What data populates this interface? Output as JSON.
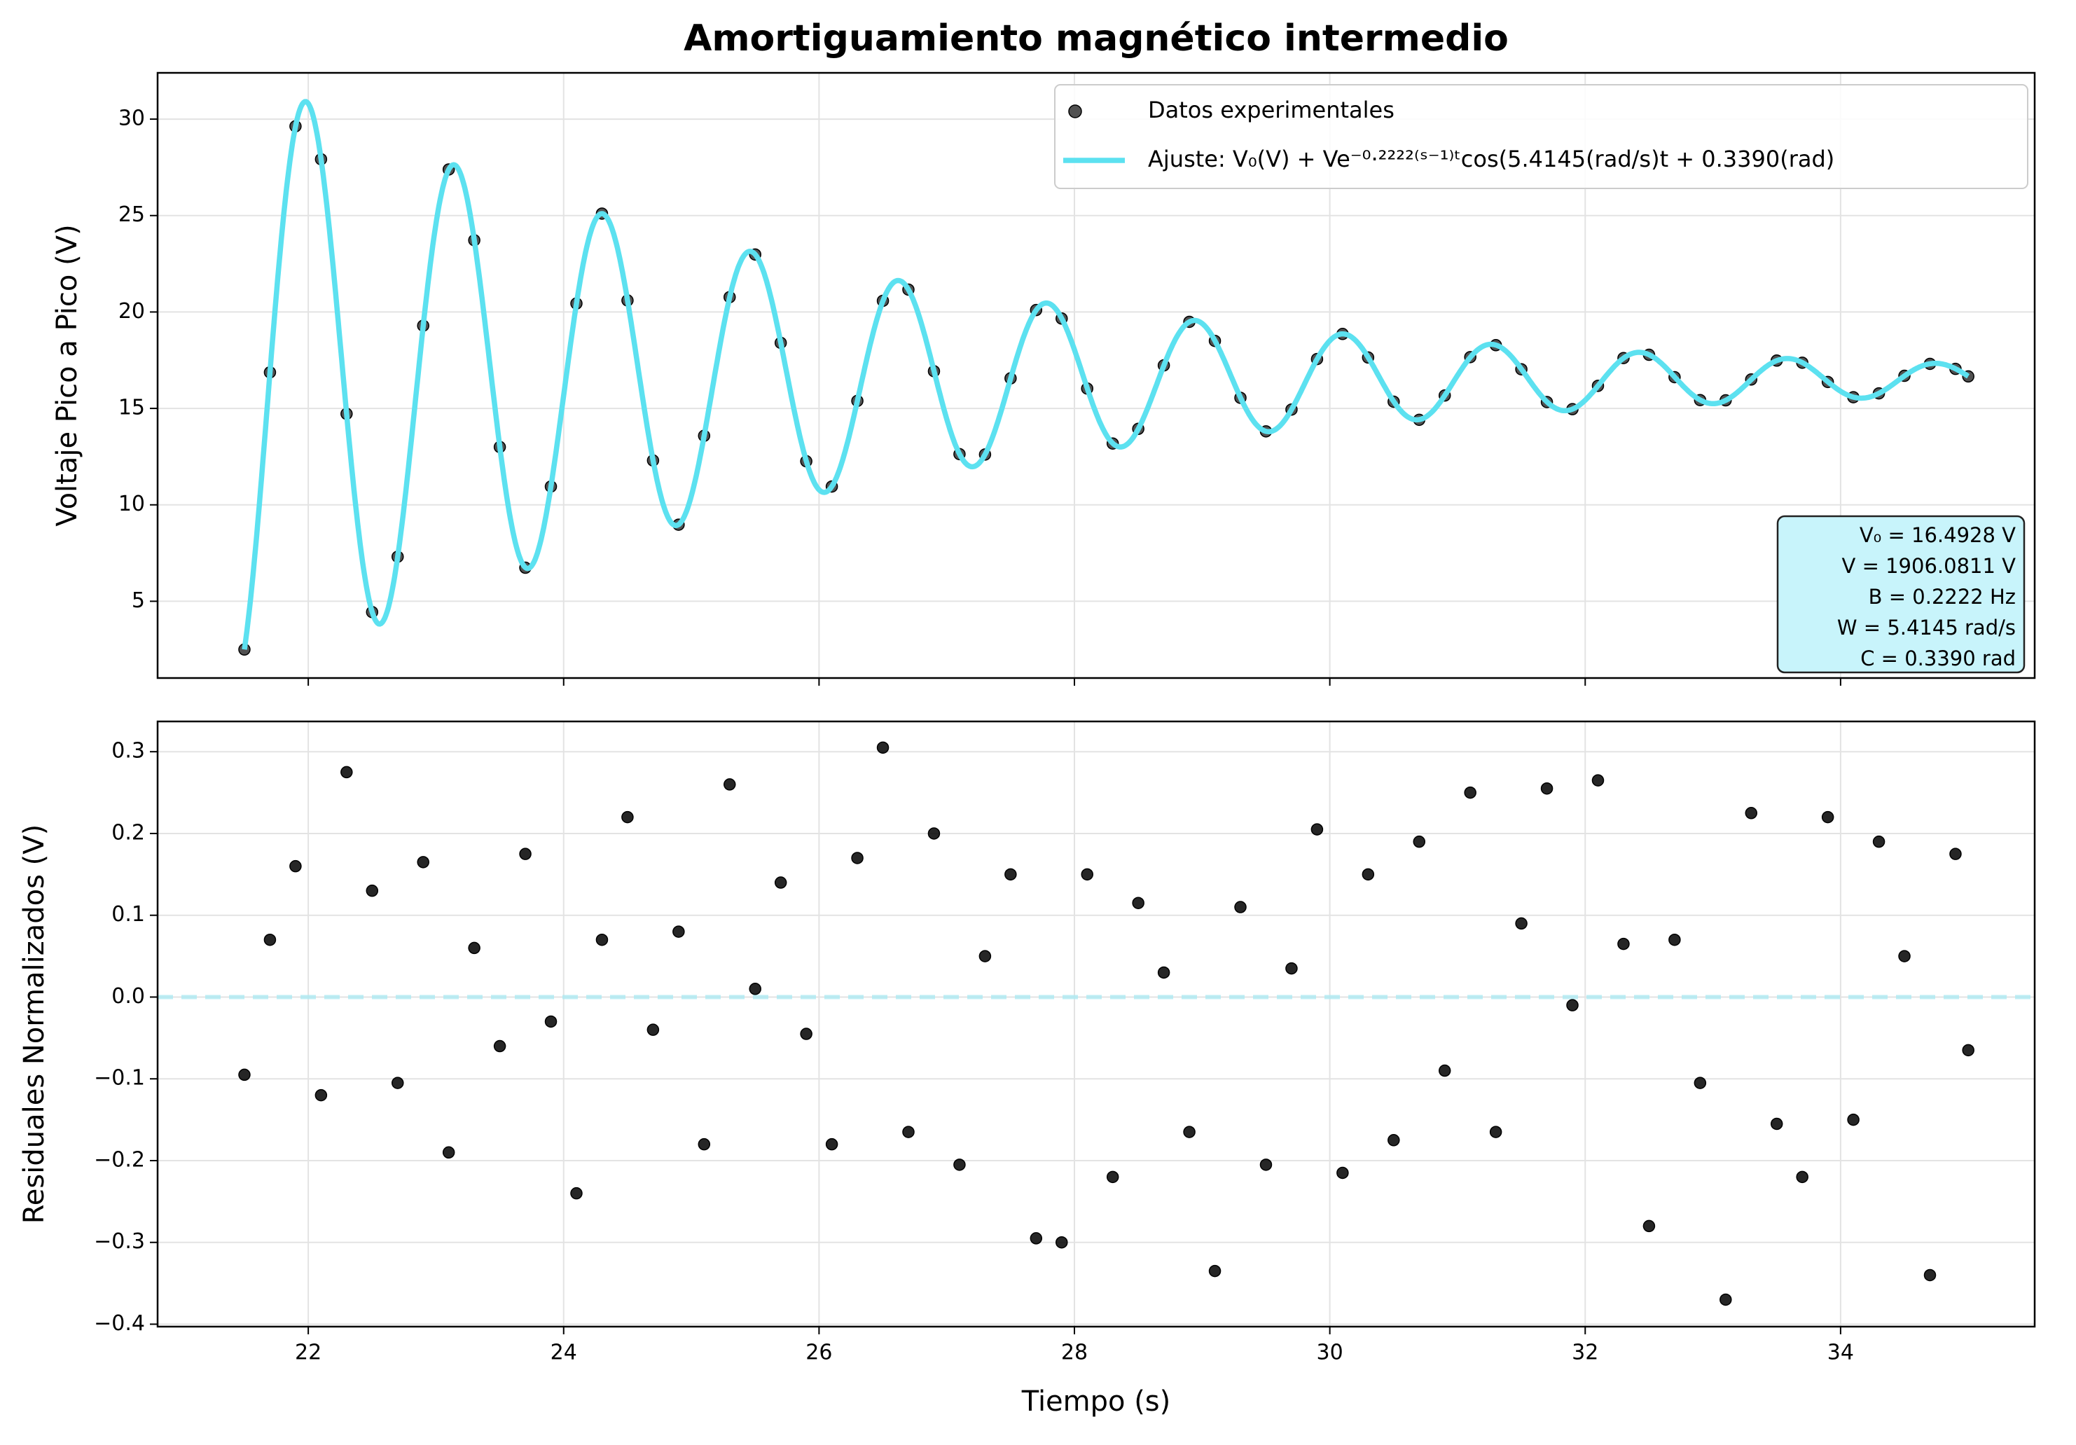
{
  "chart_data": [
    {
      "type": "scatter",
      "title": "Amortiguamiento magnético intermedio",
      "ylabel": "Voltaje Pico a Pico (V)",
      "x": [
        21.5,
        21.7,
        21.9,
        22.1,
        22.3,
        22.5,
        22.7,
        22.9,
        23.1,
        23.3,
        23.5,
        23.7,
        23.9,
        24.1,
        24.3,
        24.5,
        24.7,
        24.9,
        25.1,
        25.3,
        25.5,
        25.7,
        25.9,
        26.1,
        26.3,
        26.5,
        26.7,
        26.9,
        27.1,
        27.3,
        27.5,
        27.7,
        27.9,
        28.1,
        28.3,
        28.5,
        28.7,
        28.9,
        29.1,
        29.3,
        29.5,
        29.7,
        29.9,
        30.1,
        30.3,
        30.5,
        30.7,
        30.9,
        31.1,
        31.3,
        31.5,
        31.7,
        31.9,
        32.1,
        32.3,
        32.5,
        32.7,
        32.9,
        33.1,
        33.3,
        33.5,
        33.7,
        33.9,
        34.1,
        34.3,
        34.5,
        34.7,
        34.9,
        35.0
      ],
      "series": [
        {
          "name": "Datos experimentales",
          "color": "#333333",
          "values": [
            2.5,
            16.87,
            29.63,
            27.92,
            14.72,
            4.44,
            7.31,
            19.29,
            27.39,
            23.72,
            13.0,
            6.74,
            10.95,
            20.44,
            25.1,
            20.6,
            12.3,
            8.97,
            13.58,
            20.77,
            22.98,
            18.4,
            12.26,
            10.95,
            15.39,
            20.58,
            21.16,
            16.93,
            12.63,
            12.61,
            16.56,
            20.1,
            19.66,
            16.03,
            13.18,
            13.94,
            17.23,
            19.49,
            18.5,
            15.55,
            13.81,
            14.94,
            17.56,
            18.86,
            17.64,
            15.35,
            14.41,
            15.67,
            17.66,
            18.28,
            17.03,
            15.33,
            14.96,
            16.17,
            17.61,
            17.78,
            16.62,
            15.43,
            15.42,
            16.5,
            17.48,
            17.37,
            16.37,
            15.58,
            15.78,
            16.69,
            17.31,
            17.05,
            16.66
          ]
        }
      ],
      "fit": {
        "name": "Ajuste: V₀(V) + Ve⁻⁰·²²²²⁽ˢ⁻¹⁾ᵗcos(5.4145(rad/s)t + 0.3390(rad)",
        "color": "#5ce1f0",
        "params": {
          "V0": 16.4928,
          "V": 1906.0811,
          "B": 0.2222,
          "W": 5.4145,
          "C": 0.339
        }
      },
      "annotation": [
        "V₀ = 16.4928 V",
        "V = 1906.0811 V",
        "B = 0.2222 Hz",
        "W = 5.4145 rad/s",
        "C = 0.3390 rad"
      ],
      "xlim": [
        20.82,
        35.52
      ],
      "ylim": [
        1.02,
        32.4
      ],
      "xticks": [
        22,
        24,
        26,
        28,
        30,
        32,
        34
      ],
      "yticks": [
        5,
        10,
        15,
        20,
        25,
        30
      ],
      "grid": true,
      "legend": "upper right"
    },
    {
      "type": "scatter",
      "ylabel": "Residuales Normalizados (V)",
      "xlabel": "Tiempo (s)",
      "x": [
        21.5,
        21.7,
        21.9,
        22.1,
        22.3,
        22.5,
        22.7,
        22.9,
        23.1,
        23.3,
        23.5,
        23.7,
        23.9,
        24.1,
        24.3,
        24.5,
        24.7,
        24.9,
        25.1,
        25.3,
        25.5,
        25.7,
        25.9,
        26.1,
        26.3,
        26.5,
        26.7,
        26.9,
        27.1,
        27.3,
        27.5,
        27.7,
        27.9,
        28.1,
        28.3,
        28.5,
        28.7,
        28.9,
        29.1,
        29.3,
        29.5,
        29.7,
        29.9,
        30.1,
        30.3,
        30.5,
        30.7,
        30.9,
        31.1,
        31.3,
        31.5,
        31.7,
        31.9,
        32.1,
        32.3,
        32.5,
        32.7,
        32.9,
        33.1,
        33.3,
        33.5,
        33.7,
        33.9,
        34.1,
        34.3,
        34.5,
        34.7,
        34.9,
        35.0
      ],
      "series": [
        {
          "color": "#000000",
          "values": [
            -0.095,
            0.07,
            0.16,
            -0.12,
            0.275,
            0.13,
            -0.105,
            0.165,
            -0.19,
            0.06,
            -0.06,
            0.175,
            -0.03,
            -0.24,
            0.07,
            0.22,
            -0.04,
            0.08,
            -0.18,
            0.26,
            0.01,
            0.14,
            -0.045,
            -0.18,
            0.17,
            0.305,
            -0.165,
            0.2,
            -0.205,
            0.05,
            0.15,
            -0.295,
            -0.3,
            0.15,
            -0.22,
            0.115,
            0.03,
            -0.165,
            -0.335,
            0.11,
            -0.205,
            0.035,
            0.205,
            -0.215,
            0.15,
            -0.175,
            0.19,
            -0.09,
            0.25,
            -0.165,
            0.09,
            0.255,
            -0.01,
            0.265,
            0.065,
            -0.28,
            0.07,
            -0.105,
            -0.37,
            0.225,
            -0.155,
            -0.22,
            0.22,
            -0.15,
            0.19,
            0.05,
            -0.34,
            0.175,
            -0.065
          ]
        }
      ],
      "zero_line": {
        "value": 0,
        "color": "#aeeaf3"
      },
      "xlim": [
        20.82,
        35.52
      ],
      "ylim": [
        -0.403,
        0.337
      ],
      "xticks": [
        22,
        24,
        26,
        28,
        30,
        32,
        34
      ],
      "yticks": [
        {
          "value": -0.4,
          "label": "−0.4"
        },
        {
          "value": -0.3,
          "label": "−0.3"
        },
        {
          "value": -0.2,
          "label": "−0.2"
        },
        {
          "value": -0.1,
          "label": "−0.1"
        },
        {
          "value": 0,
          "label": "0.0"
        },
        {
          "value": 0.1,
          "label": "0.1"
        },
        {
          "value": 0.2,
          "label": "0.2"
        },
        {
          "value": 0.3,
          "label": "0.3"
        }
      ],
      "grid": true
    }
  ]
}
